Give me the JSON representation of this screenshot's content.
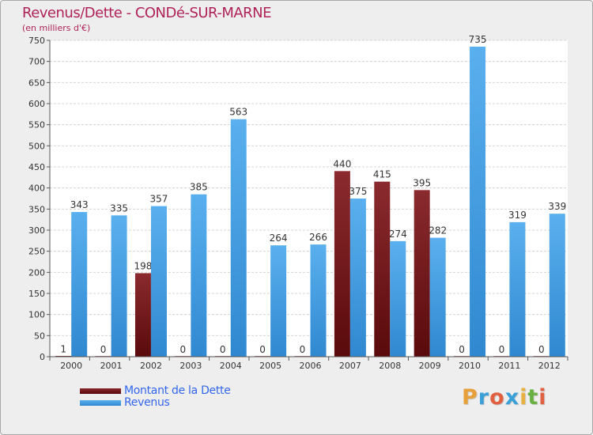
{
  "chart_data": {
    "type": "bar",
    "title": "Revenus/Dette - CONDé-SUR-MARNE",
    "subtitle": "(en milliers d'€)",
    "xlabel": "",
    "ylabel": "",
    "ylim": [
      0,
      750
    ],
    "yticks": [
      "0",
      "50",
      "100",
      "150",
      "200",
      "250",
      "300",
      "350",
      "400",
      "450",
      "500",
      "550",
      "600",
      "650",
      "700",
      "750"
    ],
    "categories": [
      "2000",
      "2001",
      "2002",
      "2003",
      "2004",
      "2005",
      "2006",
      "2007",
      "2008",
      "2009",
      "2010",
      "2011",
      "2012"
    ],
    "series": [
      {
        "name": "Montant de la Dette",
        "color": "#7a1519",
        "values": [
          1,
          0,
          198,
          0,
          0,
          0,
          0,
          440,
          415,
          395,
          0,
          0,
          0
        ]
      },
      {
        "name": "Revenus",
        "color": "#4aa1e6",
        "values": [
          343,
          335,
          357,
          385,
          563,
          264,
          266,
          375,
          274,
          282,
          735,
          319,
          339
        ]
      }
    ],
    "grid": true,
    "legend": "bottom-left"
  },
  "logo": {
    "letters": [
      {
        "ch": "P",
        "color": "#e8a03a"
      },
      {
        "ch": "r",
        "color": "#3aa0d8"
      },
      {
        "ch": "o",
        "color": "#e06040"
      },
      {
        "ch": "x",
        "color": "#3aa0d8"
      },
      {
        "ch": "i",
        "color": "#e8b040"
      },
      {
        "ch": "t",
        "color": "#68b040"
      },
      {
        "ch": "i",
        "color": "#e06040"
      }
    ]
  }
}
